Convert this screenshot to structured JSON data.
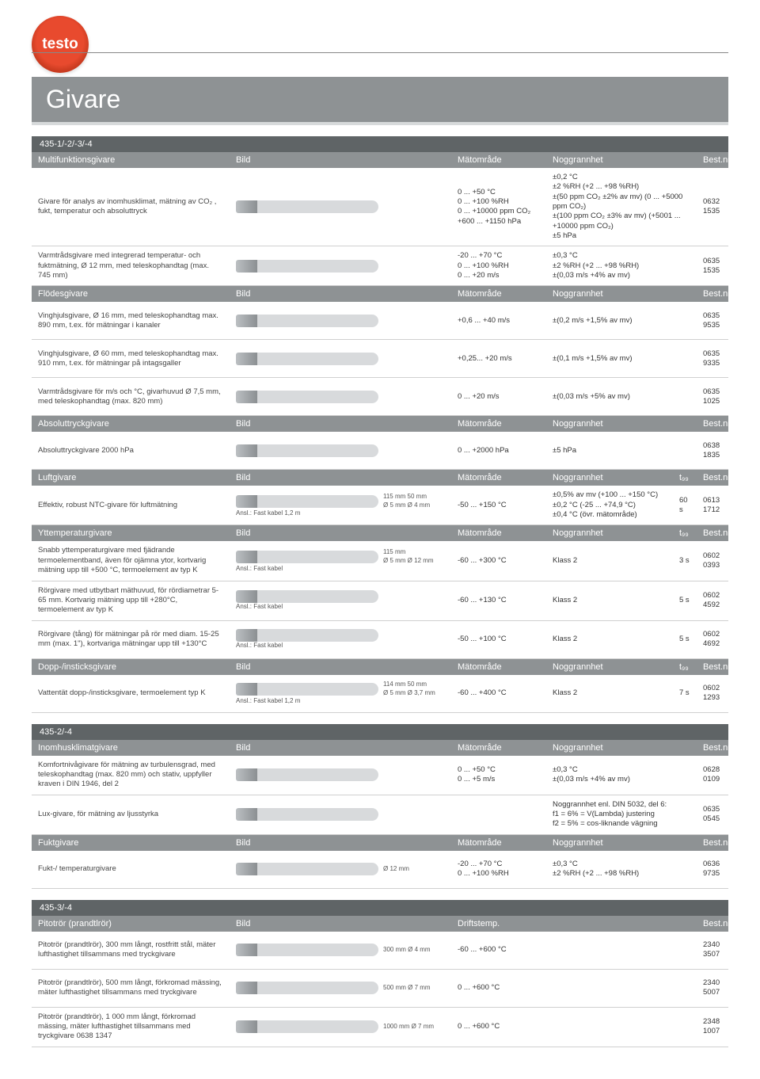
{
  "brand": "testo",
  "page_title": "Givare",
  "sections": [
    {
      "tag": "435-1/-2/-3/-4",
      "groups": [
        {
          "cols": "five",
          "header": [
            "Multifunktionsgivare",
            "Bild",
            "Mätområde",
            "Noggrannhet",
            "Best.nr"
          ],
          "rows": [
            {
              "desc": "Givare för analys av inomhusklimat, mätning av CO₂ , fukt, temperatur och absoluttryck",
              "range": "0 ... +50 °C\n0 ... +100 %RH\n0 ... +10000 ppm CO₂\n+600 ... +1150 hPa",
              "acc": "±0,2 °C\n±2 %RH (+2 ... +98 %RH)\n±(50 ppm CO₂ ±2% av mv) (0 ... +5000 ppm CO₂)\n±(100 ppm CO₂ ±3% av mv) (+5001 ... +10000 ppm CO₂)\n±5 hPa",
              "best": "0632 1535"
            },
            {
              "desc": "Varmtrådsgivare med integrerad temperatur- och fuktmätning, Ø 12 mm, med teleskophandtag (max. 745 mm)",
              "range": "-20 ... +70 °C\n0 ... +100 %RH\n0 ... +20 m/s",
              "acc": "±0,3 °C\n±2 %RH (+2 ... +98 %RH)\n±(0,03 m/s +4% av mv)",
              "best": "0635 1535"
            }
          ]
        },
        {
          "cols": "five",
          "header": [
            "Flödesgivare",
            "Bild",
            "Mätområde",
            "Noggrannhet",
            "Best.nr"
          ],
          "rows": [
            {
              "desc": "Vinghjulsgivare, Ø 16 mm, med teleskophandtag max. 890 mm, t.ex. för mätningar i kanaler",
              "range": "+0,6 ... +40 m/s",
              "acc": "±(0,2 m/s +1,5% av mv)",
              "best": "0635 9535"
            },
            {
              "desc": "Vinghjulsgivare, Ø 60 mm, med teleskophandtag max. 910 mm, t.ex. för mätningar på intagsgaller",
              "range": "+0,25... +20 m/s",
              "acc": "±(0,1 m/s +1,5% av mv)",
              "best": "0635 9335"
            },
            {
              "desc": "Varmtrådsgivare för m/s och °C, givarhuvud Ø 7,5 mm, med teleskophandtag (max. 820 mm)",
              "range": "0 ... +20 m/s",
              "acc": "±(0,03 m/s +5% av mv)",
              "best": "0635 1025"
            }
          ]
        },
        {
          "cols": "five",
          "header": [
            "Absoluttryckgivare",
            "Bild",
            "Mätområde",
            "Noggrannhet",
            "Best.nr"
          ],
          "rows": [
            {
              "desc": "Absoluttryckgivare 2000 hPa",
              "range": "0 ... +2000 hPa",
              "acc": "±5 hPa",
              "best": "0638 1835"
            }
          ]
        },
        {
          "cols": "six",
          "header": [
            "Luftgivare",
            "Bild",
            "Mätområde",
            "Noggrannhet",
            "t₉₉",
            "Best.nr"
          ],
          "rows": [
            {
              "desc": "Effektiv, robust NTC-givare för luftmätning",
              "img_note": "Ansl.: Fast kabel 1,2 m",
              "dims": "115 mm   50 mm\nØ 5 mm   Ø 4 mm",
              "range": "-50 ... +150 °C",
              "acc": "±0,5% av mv (+100 ... +150 °C)\n±0,2 °C (-25 ... +74,9 °C)\n±0,4 °C (övr. mätområde)",
              "t99": "60 s",
              "best": "0613 1712"
            }
          ]
        },
        {
          "cols": "six",
          "header": [
            "Yttemperaturgivare",
            "Bild",
            "Mätområde",
            "Noggrannhet",
            "t₉₉",
            "Best.nr"
          ],
          "rows": [
            {
              "desc": "Snabb yttemperaturgivare med fjädrande termoelementband, även för ojämna ytor, kortvarig mätning upp till +500 °C, termoelement av typ K",
              "img_note": "Ansl.: Fast kabel",
              "dims": "115 mm\nØ 5 mm   Ø 12 mm",
              "range": "-60 ... +300 °C",
              "acc": "Klass 2",
              "t99": "3 s",
              "best": "0602 0393"
            },
            {
              "desc": "Rörgivare med utbytbart mäthuvud, för rördiametrar 5-65 mm. Kortvarig mätning upp till +280°C, termoelement av typ K",
              "img_note": "Ansl.: Fast kabel",
              "range": "-60 ... +130 °C",
              "acc": "Klass 2",
              "t99": "5 s",
              "best": "0602 4592"
            },
            {
              "desc": "Rörgivare (tång) för mätningar på rör med diam. 15-25 mm (max. 1\"), kortvariga mätningar upp till +130°C",
              "img_note": "Ansl.: Fast kabel",
              "range": "-50 ... +100 °C",
              "acc": "Klass 2",
              "t99": "5 s",
              "best": "0602 4692"
            }
          ]
        },
        {
          "cols": "six",
          "header": [
            "Dopp-/insticksgivare",
            "Bild",
            "Mätområde",
            "Noggrannhet",
            "t₉₉",
            "Best.nr"
          ],
          "rows": [
            {
              "desc": "Vattentät dopp-/insticksgivare, termoelement typ K",
              "img_note": "Ansl.: Fast kabel 1,2 m",
              "dims": "114 mm   50 mm\nØ 5 mm   Ø 3,7 mm",
              "range": "-60 ... +400 °C",
              "acc": "Klass 2",
              "t99": "7 s",
              "best": "0602 1293"
            }
          ]
        }
      ]
    },
    {
      "tag": "435-2/-4",
      "groups": [
        {
          "cols": "five",
          "header": [
            "Inomhusklimatgivare",
            "Bild",
            "Mätområde",
            "Noggrannhet",
            "Best.nr"
          ],
          "rows": [
            {
              "desc": "Komfortnivågivare för mätning av turbulensgrad, med teleskophandtag (max. 820 mm) och stativ, uppfyller kraven i DIN 1946, del 2",
              "range": "0 ... +50 °C\n0 ... +5 m/s",
              "acc": "±0,3 °C\n±(0,03 m/s +4% av mv)",
              "best": "0628 0109"
            },
            {
              "desc": "Lux-givare, för mätning av ljusstyrka",
              "range": "",
              "acc": "Noggrannhet enl. DIN 5032, del 6:\nf1 = 6% = V(Lambda) justering\nf2 = 5% = cos-liknande vägning",
              "best": "0635 0545"
            }
          ]
        },
        {
          "cols": "five",
          "header": [
            "Fuktgivare",
            "Bild",
            "Mätområde",
            "Noggrannhet",
            "Best.nr"
          ],
          "rows": [
            {
              "desc": "Fukt-/ temperaturgivare",
              "dims": "Ø 12 mm",
              "range": "-20 ... +70 °C\n0 ... +100 %RH",
              "acc": "±0,3 °C\n±2 %RH (+2 ... +98 %RH)",
              "best": "0636 9735"
            }
          ]
        }
      ]
    },
    {
      "tag": "435-3/-4",
      "groups": [
        {
          "cols": "four",
          "header": [
            "Pitotrör (prandtlrör)",
            "Bild",
            "Driftstemp.",
            "Best.nr"
          ],
          "rows": [
            {
              "desc": "Pitotrör (prandtlrör), 300 mm långt, rostfritt stål, mäter lufthastighet tillsammans med tryckgivare",
              "dims": "300 mm        Ø 4 mm",
              "range": "-60 ... +600 °C",
              "best": "2340 3507"
            },
            {
              "desc": "Pitotrör (prandtlrör), 500 mm långt, förkromad mässing, mäter lufthastighet tillsammans med tryckgivare",
              "dims": "500 mm        Ø 7 mm",
              "range": "0 ... +600 °C",
              "best": "2340 5007"
            },
            {
              "desc": "Pitotrör (prandtlrör), 1 000 mm långt, förkromad mässing, mäter lufthastighet tillsammans med tryckgivare 0638 1347",
              "dims": "1000 mm       Ø 7 mm",
              "range": "0 ... +600 °C",
              "best": "2348 1007"
            }
          ]
        }
      ]
    }
  ]
}
